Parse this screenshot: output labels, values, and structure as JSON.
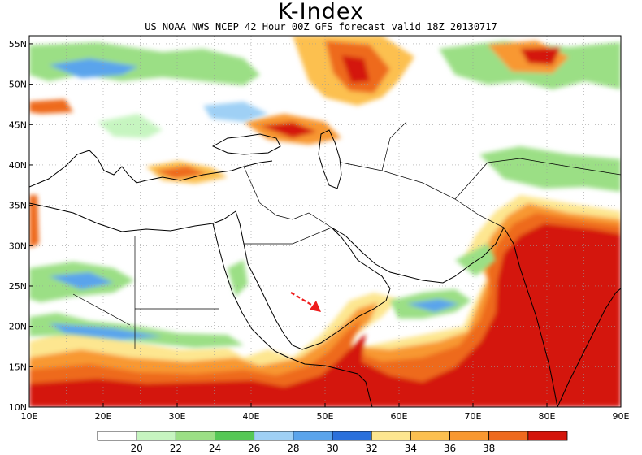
{
  "title": "K-Index",
  "subtitle": "US NOAA NWS NCEP 42 Hour 00Z GFS forecast valid 18Z 20130717",
  "lat_labels": [
    "55N",
    "50N",
    "45N",
    "40N",
    "35N",
    "30N",
    "25N",
    "20N",
    "15N",
    "10N"
  ],
  "lon_labels": [
    "10E",
    "20E",
    "30E",
    "40E",
    "50E",
    "60E",
    "70E",
    "80E",
    "90E"
  ],
  "map_extent": {
    "lon": [
      10,
      90
    ],
    "lat": [
      10,
      56
    ]
  },
  "colorbar": {
    "levels": [
      "20",
      "22",
      "24",
      "26",
      "28",
      "30",
      "32",
      "34",
      "36",
      "38"
    ],
    "colors": [
      "#ffffff",
      "#c6f5c0",
      "#9bdf85",
      "#55c855",
      "#9fd0f5",
      "#5aa4ec",
      "#2a70dc",
      "#fde690",
      "#fcc050",
      "#f89830",
      "#ee6a1e",
      "#d4150b"
    ]
  },
  "colors": {
    "coast": "#000000",
    "grid": "#9a9a9a",
    "arrow": "#ee1c1c"
  }
}
